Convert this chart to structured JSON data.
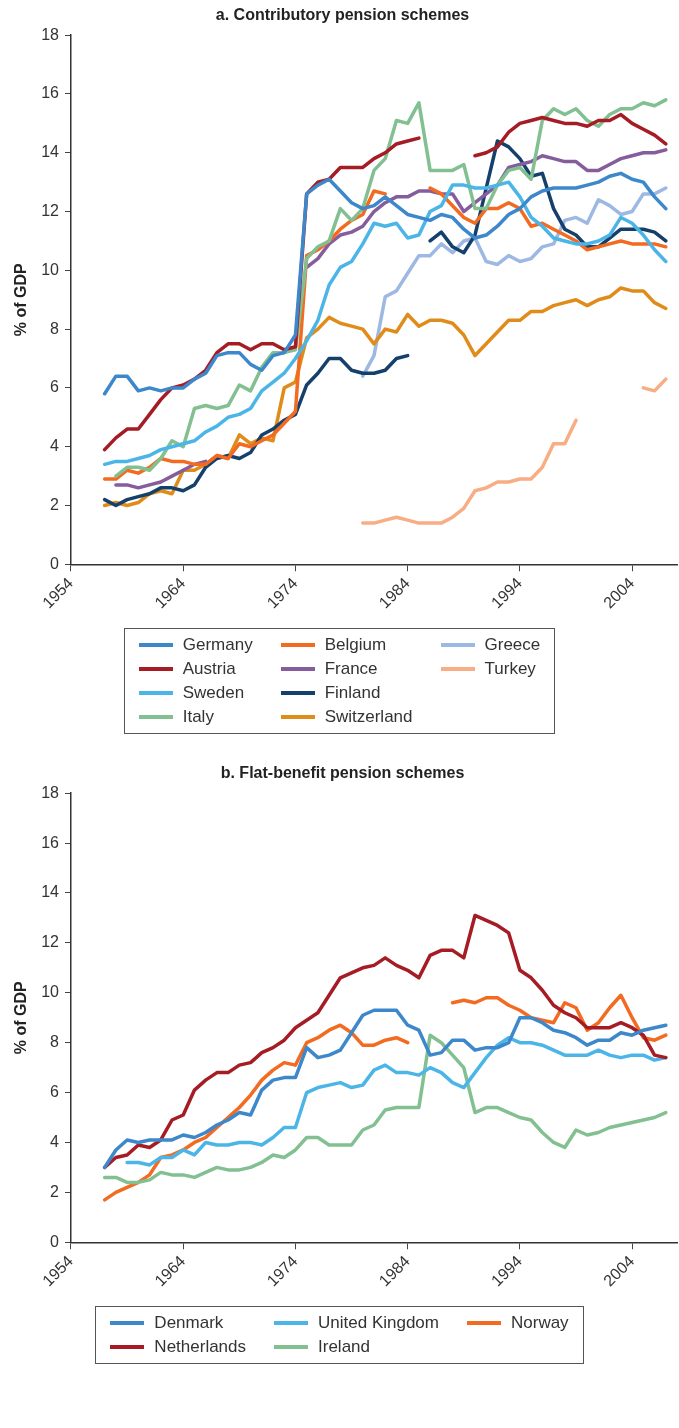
{
  "chart_data": [
    {
      "type": "line",
      "title": "a. Contributory pension schemes",
      "ylabel": "% of GDP",
      "xlim": [
        1954,
        2008
      ],
      "xticks": [
        1954,
        1964,
        1974,
        1984,
        1994,
        2004
      ],
      "ylim": [
        0,
        18
      ],
      "yticks": [
        0,
        2,
        4,
        6,
        8,
        10,
        12,
        14,
        16,
        18
      ],
      "grid": false,
      "legend": "bottom",
      "marker": "none",
      "line_style": "solid",
      "x": [
        1957,
        1958,
        1959,
        1960,
        1961,
        1962,
        1963,
        1964,
        1965,
        1966,
        1967,
        1968,
        1969,
        1970,
        1971,
        1972,
        1973,
        1974,
        1975,
        1976,
        1977,
        1978,
        1979,
        1980,
        1981,
        1982,
        1983,
        1984,
        1985,
        1986,
        1987,
        1988,
        1989,
        1990,
        1991,
        1992,
        1993,
        1994,
        1995,
        1996,
        1997,
        1998,
        1999,
        2000,
        2001,
        2002,
        2003,
        2004,
        2005,
        2006,
        2007
      ],
      "series": [
        {
          "name": "Germany",
          "color": "#3d87cb",
          "values": [
            5.8,
            6.4,
            6.4,
            5.9,
            6.0,
            5.9,
            6.0,
            6.0,
            6.3,
            6.5,
            7.1,
            7.2,
            7.2,
            6.8,
            6.6,
            7.1,
            7.2,
            7.8,
            12.6,
            12.9,
            13.1,
            12.7,
            12.3,
            12.1,
            12.2,
            12.5,
            12.2,
            11.9,
            11.8,
            11.7,
            11.9,
            11.8,
            11.4,
            11.1,
            11.2,
            11.5,
            11.9,
            12.1,
            12.5,
            12.7,
            12.8,
            12.8,
            12.8,
            12.9,
            13.0,
            13.2,
            13.3,
            13.1,
            13.0,
            12.5,
            12.1
          ]
        },
        {
          "name": "Austria",
          "color": "#a51c24",
          "values": [
            3.9,
            4.3,
            4.6,
            4.6,
            5.1,
            5.6,
            6.0,
            6.1,
            6.3,
            6.6,
            7.2,
            7.5,
            7.5,
            7.3,
            7.5,
            7.5,
            7.3,
            7.4,
            12.6,
            13.0,
            13.1,
            13.5,
            13.5,
            13.5,
            13.8,
            14.0,
            14.3,
            14.4,
            14.5,
            null,
            null,
            null,
            null,
            13.9,
            14.0,
            14.2,
            14.7,
            15.0,
            15.1,
            15.2,
            15.1,
            15.0,
            15.0,
            14.9,
            15.1,
            15.1,
            15.3,
            15.0,
            14.8,
            14.6,
            14.3
          ]
        },
        {
          "name": "Sweden",
          "color": "#4cb5e8",
          "values": [
            3.4,
            3.5,
            3.5,
            3.6,
            3.7,
            3.9,
            4.0,
            4.1,
            4.2,
            4.5,
            4.7,
            5.0,
            5.1,
            5.3,
            5.9,
            6.2,
            6.5,
            7.0,
            7.6,
            8.3,
            9.5,
            10.1,
            10.3,
            10.9,
            11.6,
            11.5,
            11.6,
            11.1,
            11.2,
            12.0,
            12.2,
            12.9,
            12.9,
            12.8,
            12.8,
            12.9,
            13.0,
            12.5,
            11.8,
            11.5,
            11.1,
            11.0,
            10.9,
            10.9,
            11.0,
            11.2,
            11.8,
            11.6,
            11.2,
            10.7,
            10.3
          ]
        },
        {
          "name": "Italy",
          "color": "#82c092",
          "values": [
            null,
            3.0,
            3.3,
            3.3,
            3.2,
            3.6,
            4.2,
            4.0,
            5.3,
            5.4,
            5.3,
            5.4,
            6.1,
            5.9,
            6.7,
            7.2,
            7.2,
            7.3,
            10.4,
            10.8,
            11.0,
            12.1,
            11.7,
            12.1,
            13.4,
            13.8,
            15.1,
            15.0,
            15.7,
            13.4,
            13.4,
            13.4,
            13.6,
            12.1,
            12.1,
            12.9,
            13.4,
            13.5,
            13.1,
            15.1,
            15.5,
            15.3,
            15.5,
            15.1,
            14.9,
            15.3,
            15.5,
            15.5,
            15.7,
            15.6,
            15.8
          ]
        },
        {
          "name": "Belgium",
          "color": "#f26b21",
          "values": [
            2.9,
            2.9,
            3.2,
            3.1,
            3.3,
            3.6,
            3.5,
            3.5,
            3.4,
            3.4,
            3.7,
            3.6,
            4.1,
            4.0,
            4.2,
            4.4,
            4.8,
            5.2,
            10.5,
            10.7,
            11.0,
            11.4,
            11.7,
            11.9,
            12.7,
            12.6,
            null,
            null,
            null,
            12.8,
            12.6,
            12.2,
            11.8,
            11.6,
            12.1,
            12.1,
            12.3,
            12.1,
            11.5,
            11.6,
            11.4,
            11.2,
            11.0,
            10.7,
            10.8,
            10.9,
            11.0,
            10.9,
            10.9,
            10.9,
            10.8
          ]
        },
        {
          "name": "France",
          "color": "#855d9c",
          "values": [
            null,
            2.7,
            2.7,
            2.6,
            2.7,
            2.8,
            3.0,
            3.2,
            3.4,
            3.5,
            null,
            null,
            null,
            null,
            null,
            null,
            null,
            null,
            10.1,
            10.4,
            10.9,
            11.2,
            11.3,
            11.5,
            12.0,
            12.3,
            12.5,
            12.5,
            12.7,
            12.7,
            12.6,
            12.6,
            12.0,
            12.3,
            12.6,
            12.9,
            13.5,
            13.6,
            13.7,
            13.9,
            13.8,
            13.7,
            13.7,
            13.4,
            13.4,
            13.6,
            13.8,
            13.9,
            14.0,
            14.0,
            14.1
          ]
        },
        {
          "name": "Finland",
          "color": "#15406b",
          "values": [
            2.2,
            2.0,
            2.2,
            2.3,
            2.4,
            2.6,
            2.6,
            2.5,
            2.7,
            3.3,
            3.6,
            3.7,
            3.6,
            3.8,
            4.4,
            4.6,
            4.9,
            5.1,
            6.1,
            6.5,
            7.0,
            7.0,
            6.6,
            6.5,
            6.5,
            6.6,
            7.0,
            7.1,
            null,
            11.0,
            11.3,
            10.8,
            10.6,
            11.2,
            12.8,
            14.4,
            14.2,
            13.8,
            13.2,
            13.3,
            12.1,
            11.4,
            11.2,
            10.8,
            10.8,
            11.1,
            11.4,
            11.4,
            11.4,
            11.3,
            11.0
          ]
        },
        {
          "name": "Switzerland",
          "color": "#e08c1a",
          "values": [
            2.0,
            2.1,
            2.0,
            2.1,
            2.4,
            2.5,
            2.4,
            3.2,
            3.2,
            3.4,
            3.7,
            3.6,
            4.4,
            4.1,
            4.3,
            4.2,
            6.0,
            6.2,
            7.7,
            8.0,
            8.4,
            8.2,
            8.1,
            8.0,
            7.5,
            8.0,
            7.9,
            8.5,
            8.1,
            8.3,
            8.3,
            8.2,
            7.8,
            7.1,
            7.5,
            7.9,
            8.3,
            8.3,
            8.6,
            8.6,
            8.8,
            8.9,
            9.0,
            8.8,
            9.0,
            9.1,
            9.4,
            9.3,
            9.3,
            8.9,
            8.7
          ]
        },
        {
          "name": "Greece",
          "color": "#9db8e2",
          "values": [
            null,
            null,
            null,
            null,
            null,
            null,
            null,
            null,
            null,
            null,
            null,
            null,
            null,
            null,
            null,
            null,
            null,
            null,
            null,
            null,
            null,
            null,
            null,
            6.4,
            7.1,
            9.1,
            9.3,
            9.9,
            10.5,
            10.5,
            10.9,
            10.6,
            11.0,
            11.1,
            10.3,
            10.2,
            10.5,
            10.3,
            10.4,
            10.8,
            10.9,
            11.7,
            11.8,
            11.6,
            12.4,
            12.2,
            11.9,
            12.0,
            12.6,
            12.6,
            12.8
          ]
        },
        {
          "name": "Turkey",
          "color": "#f8ad84",
          "values": [
            null,
            null,
            null,
            null,
            null,
            null,
            null,
            null,
            null,
            null,
            null,
            null,
            null,
            null,
            null,
            null,
            null,
            null,
            null,
            null,
            null,
            null,
            null,
            1.4,
            1.4,
            1.5,
            1.6,
            1.5,
            1.4,
            1.4,
            1.4,
            1.6,
            1.9,
            2.5,
            2.6,
            2.8,
            2.8,
            2.9,
            2.9,
            3.3,
            4.1,
            4.1,
            4.9,
            null,
            null,
            null,
            null,
            null,
            6.0,
            5.9,
            6.3
          ]
        }
      ]
    },
    {
      "type": "line",
      "title": "b. Flat-benefit pension schemes",
      "ylabel": "% of GDP",
      "xlim": [
        1954,
        2008
      ],
      "xticks": [
        1954,
        1964,
        1974,
        1984,
        1994,
        2004
      ],
      "ylim": [
        0,
        18
      ],
      "yticks": [
        0,
        2,
        4,
        6,
        8,
        10,
        12,
        14,
        16,
        18
      ],
      "grid": false,
      "legend": "bottom",
      "marker": "none",
      "line_style": "solid",
      "x": [
        1957,
        1958,
        1959,
        1960,
        1961,
        1962,
        1963,
        1964,
        1965,
        1966,
        1967,
        1968,
        1969,
        1970,
        1971,
        1972,
        1973,
        1974,
        1975,
        1976,
        1977,
        1978,
        1979,
        1980,
        1981,
        1982,
        1983,
        1984,
        1985,
        1986,
        1987,
        1988,
        1989,
        1990,
        1991,
        1992,
        1993,
        1994,
        1995,
        1996,
        1997,
        1998,
        1999,
        2000,
        2001,
        2002,
        2003,
        2004,
        2005,
        2006,
        2007
      ],
      "series": [
        {
          "name": "Denmark",
          "color": "#3d87cb",
          "values": [
            3.0,
            3.7,
            4.1,
            4.0,
            4.1,
            4.1,
            4.1,
            4.3,
            4.2,
            4.4,
            4.7,
            4.9,
            5.2,
            5.1,
            6.1,
            6.5,
            6.6,
            6.6,
            7.8,
            7.4,
            7.5,
            7.7,
            8.4,
            9.1,
            9.3,
            9.3,
            9.3,
            8.7,
            8.5,
            7.5,
            7.6,
            8.1,
            8.1,
            7.7,
            7.8,
            7.8,
            8.0,
            9.0,
            9.0,
            8.8,
            8.5,
            8.4,
            8.2,
            7.9,
            8.1,
            8.1,
            8.4,
            8.3,
            8.5,
            8.6,
            8.7
          ]
        },
        {
          "name": "Netherlands",
          "color": "#a51c24",
          "values": [
            3.0,
            3.4,
            3.5,
            3.9,
            3.8,
            4.1,
            4.9,
            5.1,
            6.1,
            6.5,
            6.8,
            6.8,
            7.1,
            7.2,
            7.6,
            7.8,
            8.1,
            8.6,
            8.9,
            9.2,
            9.9,
            10.6,
            10.8,
            11.0,
            11.1,
            11.4,
            11.1,
            10.9,
            10.6,
            11.5,
            11.7,
            11.7,
            11.4,
            13.1,
            12.9,
            12.7,
            12.4,
            10.9,
            10.6,
            10.1,
            9.5,
            9.2,
            9.0,
            8.6,
            8.6,
            8.6,
            8.8,
            8.6,
            8.3,
            7.5,
            7.4
          ]
        },
        {
          "name": "United Kingdom",
          "color": "#4cb5e8",
          "values": [
            null,
            null,
            3.2,
            3.2,
            3.1,
            3.4,
            3.4,
            3.7,
            3.5,
            4.0,
            3.9,
            3.9,
            4.0,
            4.0,
            3.9,
            4.2,
            4.6,
            4.6,
            6.0,
            6.2,
            6.3,
            6.4,
            6.2,
            6.3,
            6.9,
            7.1,
            6.8,
            6.8,
            6.7,
            7.0,
            6.8,
            6.4,
            6.2,
            6.8,
            7.4,
            7.9,
            8.2,
            8.0,
            8.0,
            7.9,
            7.7,
            7.5,
            7.5,
            7.5,
            7.7,
            7.5,
            7.4,
            7.5,
            7.5,
            7.3,
            7.4
          ]
        },
        {
          "name": "Ireland",
          "color": "#82c092",
          "values": [
            2.6,
            2.6,
            2.4,
            2.4,
            2.5,
            2.8,
            2.7,
            2.7,
            2.6,
            2.8,
            3.0,
            2.9,
            2.9,
            3.0,
            3.2,
            3.5,
            3.4,
            3.7,
            4.2,
            4.2,
            3.9,
            3.9,
            3.9,
            4.5,
            4.7,
            5.3,
            5.4,
            5.4,
            5.4,
            8.3,
            8.0,
            7.5,
            7.0,
            5.2,
            5.4,
            5.4,
            5.2,
            5.0,
            4.9,
            4.4,
            4.0,
            3.8,
            4.5,
            4.3,
            4.4,
            4.6,
            4.7,
            4.8,
            4.9,
            5.0,
            5.2
          ]
        },
        {
          "name": "Norway",
          "color": "#f26b21",
          "values": [
            1.7,
            2.0,
            2.2,
            2.4,
            2.7,
            3.4,
            3.5,
            3.7,
            4.0,
            4.2,
            4.6,
            5.0,
            5.4,
            5.9,
            6.5,
            6.9,
            7.2,
            7.1,
            8.0,
            8.2,
            8.5,
            8.7,
            8.4,
            7.9,
            7.9,
            8.1,
            8.2,
            8.0,
            null,
            null,
            null,
            9.6,
            9.7,
            9.6,
            9.8,
            9.8,
            9.5,
            9.3,
            9.0,
            8.9,
            8.8,
            9.6,
            9.4,
            8.5,
            8.8,
            9.4,
            9.9,
            9.0,
            8.2,
            8.1,
            8.3
          ]
        }
      ]
    }
  ]
}
